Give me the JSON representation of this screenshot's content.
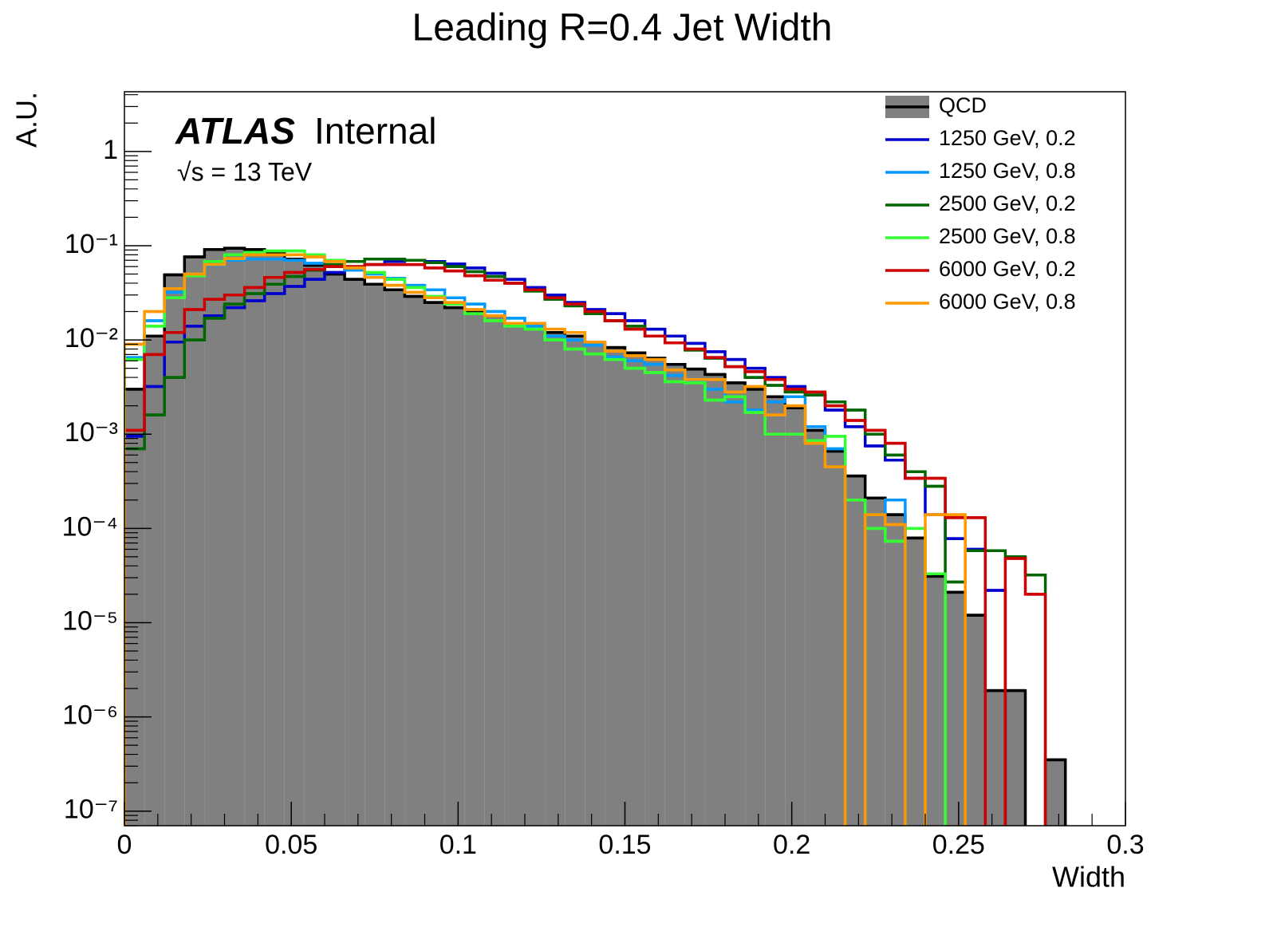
{
  "chart_data": {
    "type": "histogram",
    "title": "Leading R=0.4 Jet Width",
    "x_label": "Width",
    "y_label": "A.U.",
    "annotations": [
      "ATLAS",
      "Internal",
      "√s = 13 TeV"
    ],
    "log_y": true,
    "legend": "top-right",
    "bins": [
      0,
      0.006,
      0.012,
      0.018,
      0.024,
      0.03,
      0.036,
      0.042,
      0.048,
      0.054,
      0.06,
      0.066,
      0.072,
      0.078,
      0.084,
      0.09,
      0.096,
      0.102,
      0.108,
      0.114,
      0.12,
      0.126,
      0.132,
      0.138,
      0.144,
      0.15,
      0.156,
      0.162,
      0.168,
      0.174,
      0.18,
      0.186,
      0.192,
      0.198,
      0.204,
      0.21,
      0.216,
      0.222,
      0.228,
      0.234,
      0.24,
      0.246,
      0.252,
      0.258,
      0.264,
      0.27,
      0.276,
      0.282,
      0.288,
      0.294,
      0.3
    ],
    "xlim": [
      0,
      0.3
    ],
    "xticks": [
      0,
      0.05,
      0.1,
      0.15,
      0.2,
      0.25,
      0.3
    ],
    "ylim": [
      7e-08,
      4.3
    ],
    "yticks": [
      {
        "value": 1e-07,
        "label": "10⁻⁷"
      },
      {
        "value": 1e-06,
        "label": "10⁻⁶"
      },
      {
        "value": 1e-05,
        "label": "10⁻⁵"
      },
      {
        "value": 0.0001,
        "label": "10⁻⁴"
      },
      {
        "value": 0.001,
        "label": "10⁻³"
      },
      {
        "value": 0.01,
        "label": "10⁻²"
      },
      {
        "value": 0.1,
        "label": "10⁻¹"
      },
      1
    ],
    "series": [
      {
        "name": "QCD",
        "color": "#000000",
        "fill": "#808080",
        "values": [
          0.003,
          0.011,
          0.049,
          0.076,
          0.091,
          0.094,
          0.091,
          0.083,
          0.072,
          0.062,
          0.05,
          0.044,
          0.039,
          0.034,
          0.029,
          0.025,
          0.022,
          0.02,
          0.018,
          0.015,
          0.013,
          0.012,
          0.011,
          0.0095,
          0.0083,
          0.0073,
          0.0064,
          0.0055,
          0.0049,
          0.0043,
          0.0035,
          0.003,
          0.0025,
          0.0019,
          0.0011,
          0.00066,
          0.00036,
          0.00021,
          0.00014,
          7.9e-05,
          3.1e-05,
          2.1e-05,
          1.2e-05,
          1.9e-06,
          1.9e-06,
          0,
          3.5e-07,
          0,
          0,
          0
        ]
      },
      {
        "name": "1250 GeV, 0.2",
        "color": "#0000cc",
        "values": [
          0.00095,
          0.0032,
          0.0095,
          0.014,
          0.018,
          0.022,
          0.026,
          0.031,
          0.037,
          0.044,
          0.052,
          0.058,
          0.063,
          0.068,
          0.07,
          0.068,
          0.064,
          0.058,
          0.051,
          0.044,
          0.036,
          0.03,
          0.025,
          0.021,
          0.019,
          0.016,
          0.013,
          0.011,
          0.0092,
          0.0075,
          0.0062,
          0.005,
          0.004,
          0.0032,
          0.0026,
          0.0018,
          0.0012,
          0.00075,
          0.00053,
          0.00034,
          0.00014,
          7.8e-05,
          6e-05,
          2.2e-05,
          0,
          0,
          0,
          0,
          0,
          0
        ]
      },
      {
        "name": "1250 GeV, 0.8",
        "color": "#0099ff",
        "values": [
          0.0065,
          0.016,
          0.032,
          0.05,
          0.062,
          0.07,
          0.072,
          0.072,
          0.07,
          0.065,
          0.06,
          0.055,
          0.05,
          0.045,
          0.038,
          0.034,
          0.028,
          0.024,
          0.02,
          0.017,
          0.014,
          0.011,
          0.01,
          0.0088,
          0.0066,
          0.006,
          0.0055,
          0.0042,
          0.0036,
          0.003,
          0.0022,
          0.0018,
          0.0022,
          0.0025,
          0.0012,
          0.0007,
          0.0002,
          0.00014,
          0.0002,
          0,
          0,
          0,
          0,
          0,
          0,
          0,
          0,
          0,
          0,
          0
        ]
      },
      {
        "name": "2500 GeV, 0.2",
        "color": "#006600",
        "values": [
          0.0007,
          0.0016,
          0.004,
          0.01,
          0.017,
          0.024,
          0.031,
          0.039,
          0.047,
          0.055,
          0.063,
          0.068,
          0.072,
          0.072,
          0.07,
          0.066,
          0.06,
          0.053,
          0.047,
          0.04,
          0.033,
          0.027,
          0.023,
          0.019,
          0.016,
          0.014,
          0.011,
          0.0093,
          0.0078,
          0.0064,
          0.0052,
          0.004,
          0.0033,
          0.0028,
          0.0026,
          0.0022,
          0.0018,
          0.001,
          0.0006,
          0.0004,
          0.00028,
          2.7e-05,
          5.8e-05,
          5.8e-05,
          5e-05,
          3.2e-05,
          0,
          0,
          0,
          0
        ]
      },
      {
        "name": "2500 GeV, 0.8",
        "color": "#33ff33",
        "values": [
          0.0062,
          0.014,
          0.028,
          0.048,
          0.068,
          0.08,
          0.085,
          0.088,
          0.088,
          0.08,
          0.07,
          0.06,
          0.052,
          0.044,
          0.036,
          0.029,
          0.024,
          0.019,
          0.016,
          0.014,
          0.013,
          0.01,
          0.008,
          0.0071,
          0.0062,
          0.005,
          0.0045,
          0.0036,
          0.0035,
          0.0023,
          0.0025,
          0.0017,
          0.001,
          0.001,
          0.00085,
          0.00095,
          0.0002,
          0.0001,
          7.3e-05,
          0.0001,
          3.3e-05,
          0,
          0,
          0,
          0,
          0,
          0,
          0,
          0,
          0
        ]
      },
      {
        "name": "6000 GeV, 0.2",
        "color": "#cc0000",
        "values": [
          0.0011,
          0.007,
          0.012,
          0.021,
          0.027,
          0.03,
          0.036,
          0.046,
          0.052,
          0.056,
          0.06,
          0.06,
          0.063,
          0.063,
          0.063,
          0.058,
          0.054,
          0.048,
          0.043,
          0.04,
          0.034,
          0.028,
          0.024,
          0.02,
          0.016,
          0.013,
          0.011,
          0.0093,
          0.008,
          0.0065,
          0.0052,
          0.0046,
          0.0038,
          0.003,
          0.0028,
          0.002,
          0.0014,
          0.0011,
          0.0008,
          0.00034,
          0.00034,
          0.00013,
          0.00013,
          0,
          4.8e-05,
          2e-05,
          0,
          0,
          0,
          0
        ]
      },
      {
        "name": "6000 GeV, 0.8",
        "color": "#ff9900",
        "values": [
          0.009,
          0.02,
          0.035,
          0.05,
          0.063,
          0.073,
          0.08,
          0.08,
          0.08,
          0.076,
          0.068,
          0.058,
          0.046,
          0.038,
          0.032,
          0.028,
          0.025,
          0.021,
          0.018,
          0.015,
          0.015,
          0.013,
          0.012,
          0.0095,
          0.0076,
          0.0068,
          0.0062,
          0.0048,
          0.0038,
          0.0038,
          0.0028,
          0.0032,
          0.0016,
          0.002,
          0.0008,
          0.00045,
          0,
          0.00014,
          0.00011,
          0,
          0.00014,
          0.00014,
          0,
          0,
          0,
          0,
          0,
          0,
          0,
          0
        ]
      }
    ]
  }
}
